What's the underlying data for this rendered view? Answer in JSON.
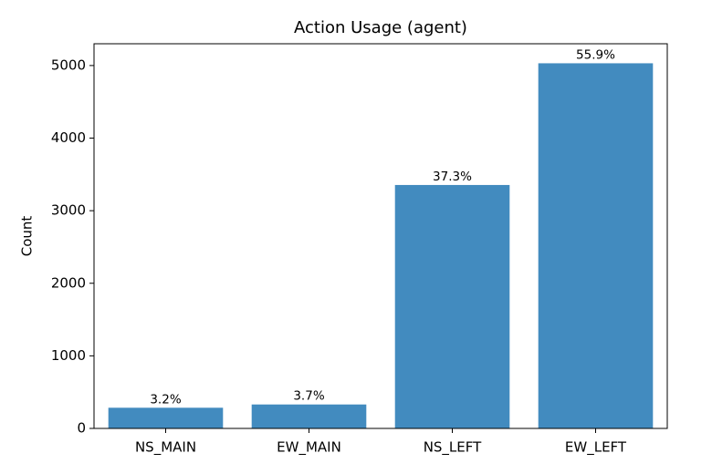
{
  "chart_data": {
    "type": "bar",
    "title": "Action Usage (agent)",
    "y_label": "Count",
    "categories": [
      "NS_MAIN",
      "EW_MAIN",
      "NS_LEFT",
      "EW_LEFT"
    ],
    "values": [
      285,
      330,
      3354,
      5031
    ],
    "value_labels": [
      "3.2%",
      "3.7%",
      "37.3%",
      "55.9%"
    ],
    "color": "#428bbf",
    "ylim": [
      0,
      5300
    ],
    "yticks": [
      0,
      1000,
      2000,
      3000,
      4000,
      5000
    ],
    "grid": false
  }
}
